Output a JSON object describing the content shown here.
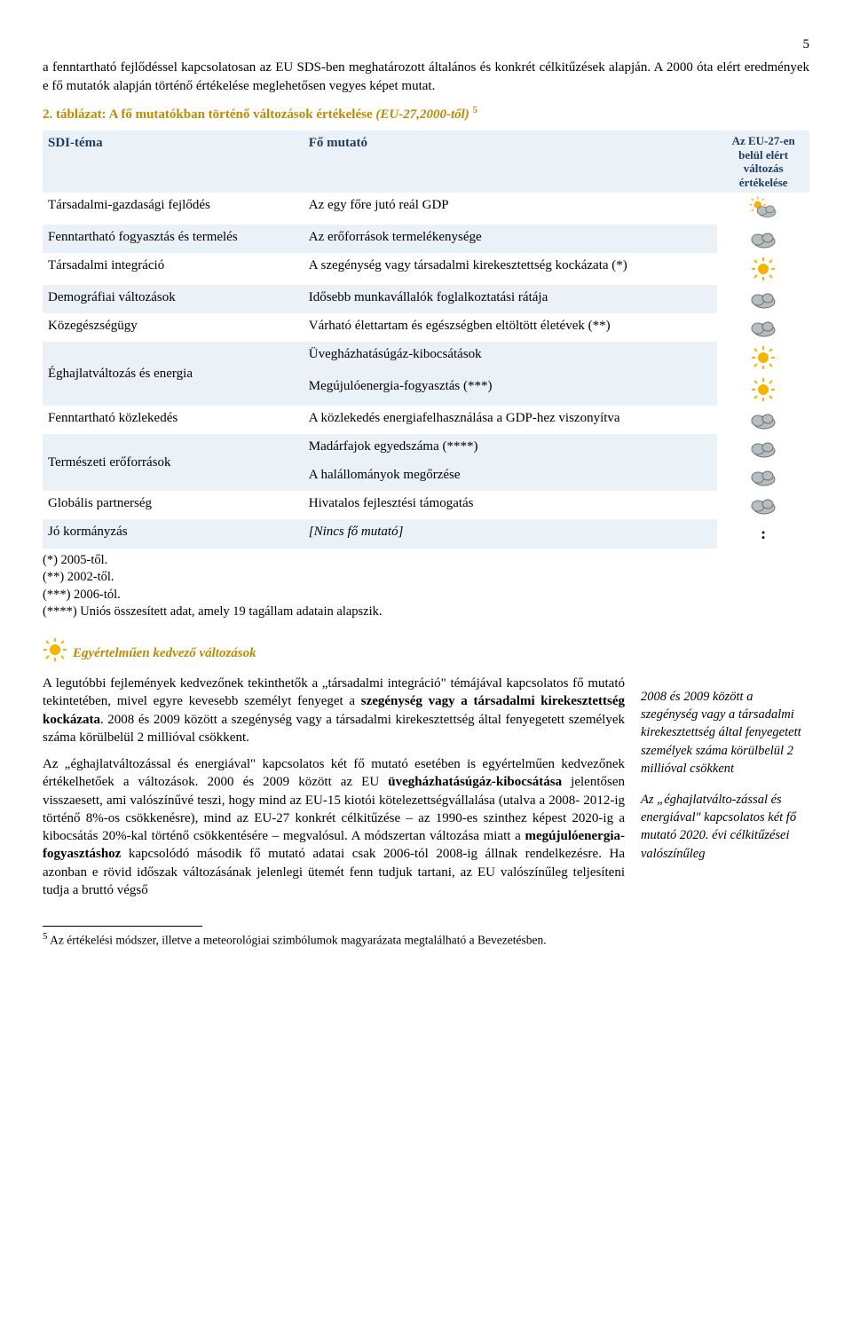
{
  "page_number": "5",
  "intro_paragraph": "a fenntartható fejlődéssel kapcsolatosan az EU SDS-ben meghatározott általános és konkrét célkitűzések alapján. A 2000 óta elért eredmények e fő mutatók alapján történő értékelése meglehetősen vegyes képet mutat.",
  "table_caption_prefix": "2. táblázat: A fő mutatókban történő változások értékelése ",
  "table_caption_italic": "(EU-27,2000-től)",
  "table_caption_sup": "5",
  "table": {
    "header": {
      "col1": "SDI-téma",
      "col2": "Fő mutató",
      "col3": "Az EU-27-en belül elért változás értékelése"
    },
    "rows": [
      {
        "theme": "Társadalmi-gazdasági fejlődés",
        "indicator": "Az egy főre jutó reál GDP",
        "icon": "suncloud",
        "shade": false
      },
      {
        "theme": "Fenntartható fogyasztás és termelés",
        "indicator": "Az erőforrások termelékenysége",
        "icon": "cloud",
        "shade": true
      },
      {
        "theme": "Társadalmi integráció",
        "indicator": "A szegénység vagy társadalmi kirekesztettség kockázata (*)",
        "icon": "sun",
        "shade": false
      },
      {
        "theme": "Demográfiai változások",
        "indicator": "Idősebb munkavállalók foglalkoztatási rátája",
        "icon": "cloud",
        "shade": true
      },
      {
        "theme": "Közegészségügy",
        "indicator": "Várható élettartam és egészségben eltöltött életévek (**)",
        "icon": "cloud",
        "shade": false
      },
      {
        "theme": "Éghajlatváltozás és energia",
        "indicator2a": "Üvegházhatásúgáz-kibocsátások",
        "indicator2b": "Megújulóenergia-fogyasztás (***)",
        "icon2a": "sun",
        "icon2b": "sun",
        "shade": true,
        "double": true
      },
      {
        "theme": "Fenntartható közlekedés",
        "indicator": "A közlekedés energiafelhasználása a GDP-hez viszonyítva",
        "icon": "cloud",
        "shade": false
      },
      {
        "theme": "Természeti erőforrások",
        "indicator2a": "Madárfajok egyedszáma (****)",
        "indicator2b": "A halállományok megőrzése",
        "icon2a": "cloud",
        "icon2b": "cloud",
        "shade": true,
        "double": true
      },
      {
        "theme": "Globális partnerség",
        "indicator": "Hivatalos fejlesztési támogatás",
        "icon": "cloud",
        "shade": false
      },
      {
        "theme": "Jó kormányzás",
        "indicator_italic": "[Nincs fő mutató]",
        "icon": "colon",
        "shade": true
      }
    ]
  },
  "notes": [
    "(*) 2005-től.",
    "(**) 2002-től.",
    "(***) 2006-tól.",
    "(****) Uniós összesített adat, amely 19 tagállam adatain alapszik."
  ],
  "section_heading": "Egyértelműen kedvező változások",
  "body_paragraphs": [
    "A legutóbbi fejlemények kedvezőnek tekinthetők a „társadalmi integráció\" témájával kapcsolatos fő mutató tekintetében, mivel egyre kevesebb személyt fenyeget a <b>szegénység vagy a társadalmi kirekesztettség kockázata</b>. 2008 és 2009 között a szegénység vagy a társadalmi kirekesztettség által fenyegetett személyek száma körülbelül 2 millióval csökkent.",
    "Az „éghajlatváltozással és energiával\" kapcsolatos két fő mutató esetében is egyértelműen kedvezőnek értékelhetőek a változások. 2000 és 2009 között az EU <b>üvegházhatásúgáz-kibocsátása</b> jelentősen visszaesett, ami valószínűvé teszi, hogy mind az EU-15 kiotói kötelezettségvállalása (utalva a 2008- 2012-ig történő 8%-os csökkenésre), mind az EU-27 konkrét célkitűzése – az 1990-es szinthez képest 2020-ig a kibocsátás 20%-kal történő csökkentésére – megvalósul. A módszertan változása miatt a <b>megújulóenergia-fogyasztáshoz</b> kapcsolódó második fő mutató adatai csak 2006-tól 2008-ig állnak rendelkezésre. Ha azonban e rövid időszak változásának jelenlegi ütemét fenn tudjuk tartani, az EU valószínűleg teljesíteni tudja a bruttó végső"
  ],
  "side_text": "2008 és 2009 között a szegénység vagy a társadalmi kirekesztettség által fenyegetett személyek száma körülbelül 2 millióval csökkent\n\nAz „éghajlatválto-zással és energiával\" kapcsolatos két fő mutató 2020. évi célkitűzései valószínűleg",
  "footnote_sup": "5",
  "footnote_text": " Az értékelési módszer, illetve a meteorológiai szimbólumok magyarázata megtalálható a Bevezetésben.",
  "icons": {
    "sun_color": "#f6b400",
    "cloud_fill": "#b8bdbf",
    "cloud_stroke": "#6e7577"
  }
}
